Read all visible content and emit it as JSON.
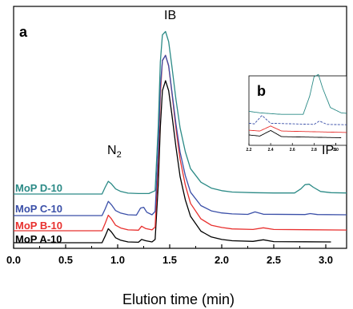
{
  "chart_data": {
    "type": "line",
    "panel_label": "a",
    "inset_panel_label": "b",
    "xlabel": "Elution time (min)",
    "ylabel": "",
    "xlim": [
      0.0,
      3.2
    ],
    "x_ticks": [
      "0.0",
      "0.5",
      "1.0",
      "1.5",
      "2.0",
      "2.5",
      "3.0"
    ],
    "y_ticks_shown": false,
    "grid": false,
    "annotations": [
      {
        "text": "N",
        "subscript": "2",
        "x": 0.92
      },
      {
        "text": "IB",
        "x": 1.47
      },
      {
        "text": "IP",
        "x": 2.85
      }
    ],
    "series": [
      {
        "name": "MoP A-10",
        "color": "#000000",
        "x": [
          0.0,
          0.8,
          0.85,
          0.88,
          0.91,
          0.94,
          0.98,
          1.03,
          1.1,
          1.2,
          1.23,
          1.27,
          1.33,
          1.36,
          1.39,
          1.41,
          1.43,
          1.46,
          1.49,
          1.52,
          1.56,
          1.6,
          1.65,
          1.7,
          1.8,
          1.9,
          2.0,
          2.1,
          2.3,
          2.4,
          2.5,
          3.05
        ],
        "values": [
          0.0,
          0.0,
          0.0,
          0.04,
          0.085,
          0.065,
          0.03,
          0.015,
          0.005,
          0.003,
          0.02,
          0.012,
          0.005,
          0.02,
          0.35,
          0.7,
          0.92,
          0.98,
          0.92,
          0.78,
          0.58,
          0.4,
          0.26,
          0.16,
          0.07,
          0.035,
          0.02,
          0.012,
          0.008,
          0.018,
          0.007,
          0.005
        ]
      },
      {
        "name": "MoP B-10",
        "color": "#e8302e",
        "x": [
          0.0,
          0.8,
          0.85,
          0.88,
          0.91,
          0.94,
          0.98,
          1.03,
          1.1,
          1.2,
          1.23,
          1.27,
          1.33,
          1.36,
          1.39,
          1.41,
          1.43,
          1.46,
          1.49,
          1.52,
          1.56,
          1.6,
          1.65,
          1.7,
          1.8,
          1.9,
          2.0,
          2.1,
          2.3,
          2.4,
          2.5,
          3.2
        ],
        "values": [
          0.0,
          0.0,
          0.0,
          0.04,
          0.085,
          0.065,
          0.03,
          0.015,
          0.005,
          0.003,
          0.025,
          0.012,
          0.005,
          0.02,
          0.38,
          0.74,
          0.93,
          0.96,
          0.9,
          0.76,
          0.56,
          0.39,
          0.25,
          0.15,
          0.065,
          0.03,
          0.018,
          0.01,
          0.007,
          0.016,
          0.007,
          0.004
        ]
      },
      {
        "name": "MoP C-10",
        "color": "#3a4fa8",
        "x": [
          0.0,
          0.8,
          0.85,
          0.88,
          0.91,
          0.94,
          0.98,
          1.03,
          1.1,
          1.18,
          1.22,
          1.25,
          1.28,
          1.33,
          1.36,
          1.39,
          1.41,
          1.43,
          1.46,
          1.49,
          1.52,
          1.56,
          1.6,
          1.65,
          1.7,
          1.8,
          1.9,
          2.0,
          2.1,
          2.25,
          2.32,
          2.4,
          2.8,
          2.85,
          2.92,
          3.2
        ],
        "values": [
          0.0,
          0.0,
          0.0,
          0.04,
          0.085,
          0.065,
          0.03,
          0.015,
          0.005,
          0.003,
          0.045,
          0.05,
          0.02,
          0.005,
          0.025,
          0.4,
          0.77,
          0.93,
          0.96,
          0.9,
          0.75,
          0.55,
          0.38,
          0.24,
          0.14,
          0.06,
          0.028,
          0.016,
          0.01,
          0.007,
          0.022,
          0.008,
          0.006,
          0.012,
          0.006,
          0.005
        ]
      },
      {
        "name": "MoP D-10",
        "color": "#2b8a86",
        "x": [
          0.0,
          0.8,
          0.85,
          0.88,
          0.91,
          0.94,
          0.98,
          1.03,
          1.1,
          1.2,
          1.3,
          1.36,
          1.39,
          1.41,
          1.43,
          1.46,
          1.49,
          1.52,
          1.56,
          1.6,
          1.65,
          1.7,
          1.8,
          1.9,
          2.0,
          2.1,
          2.3,
          2.5,
          2.7,
          2.76,
          2.8,
          2.84,
          2.88,
          2.95,
          3.05,
          3.2
        ],
        "values": [
          0.0,
          0.0,
          0.0,
          0.04,
          0.075,
          0.06,
          0.03,
          0.015,
          0.005,
          0.003,
          0.003,
          0.02,
          0.4,
          0.78,
          0.94,
          0.96,
          0.9,
          0.76,
          0.56,
          0.39,
          0.25,
          0.15,
          0.07,
          0.035,
          0.02,
          0.012,
          0.008,
          0.006,
          0.006,
          0.03,
          0.055,
          0.058,
          0.04,
          0.015,
          0.008,
          0.006
        ]
      }
    ],
    "inset": {
      "xlim": [
        2.2,
        3.1
      ],
      "x_ticks": [
        "2.2",
        "2.4",
        "2.6",
        "2.8",
        "3.0",
        "3."
      ]
    }
  }
}
